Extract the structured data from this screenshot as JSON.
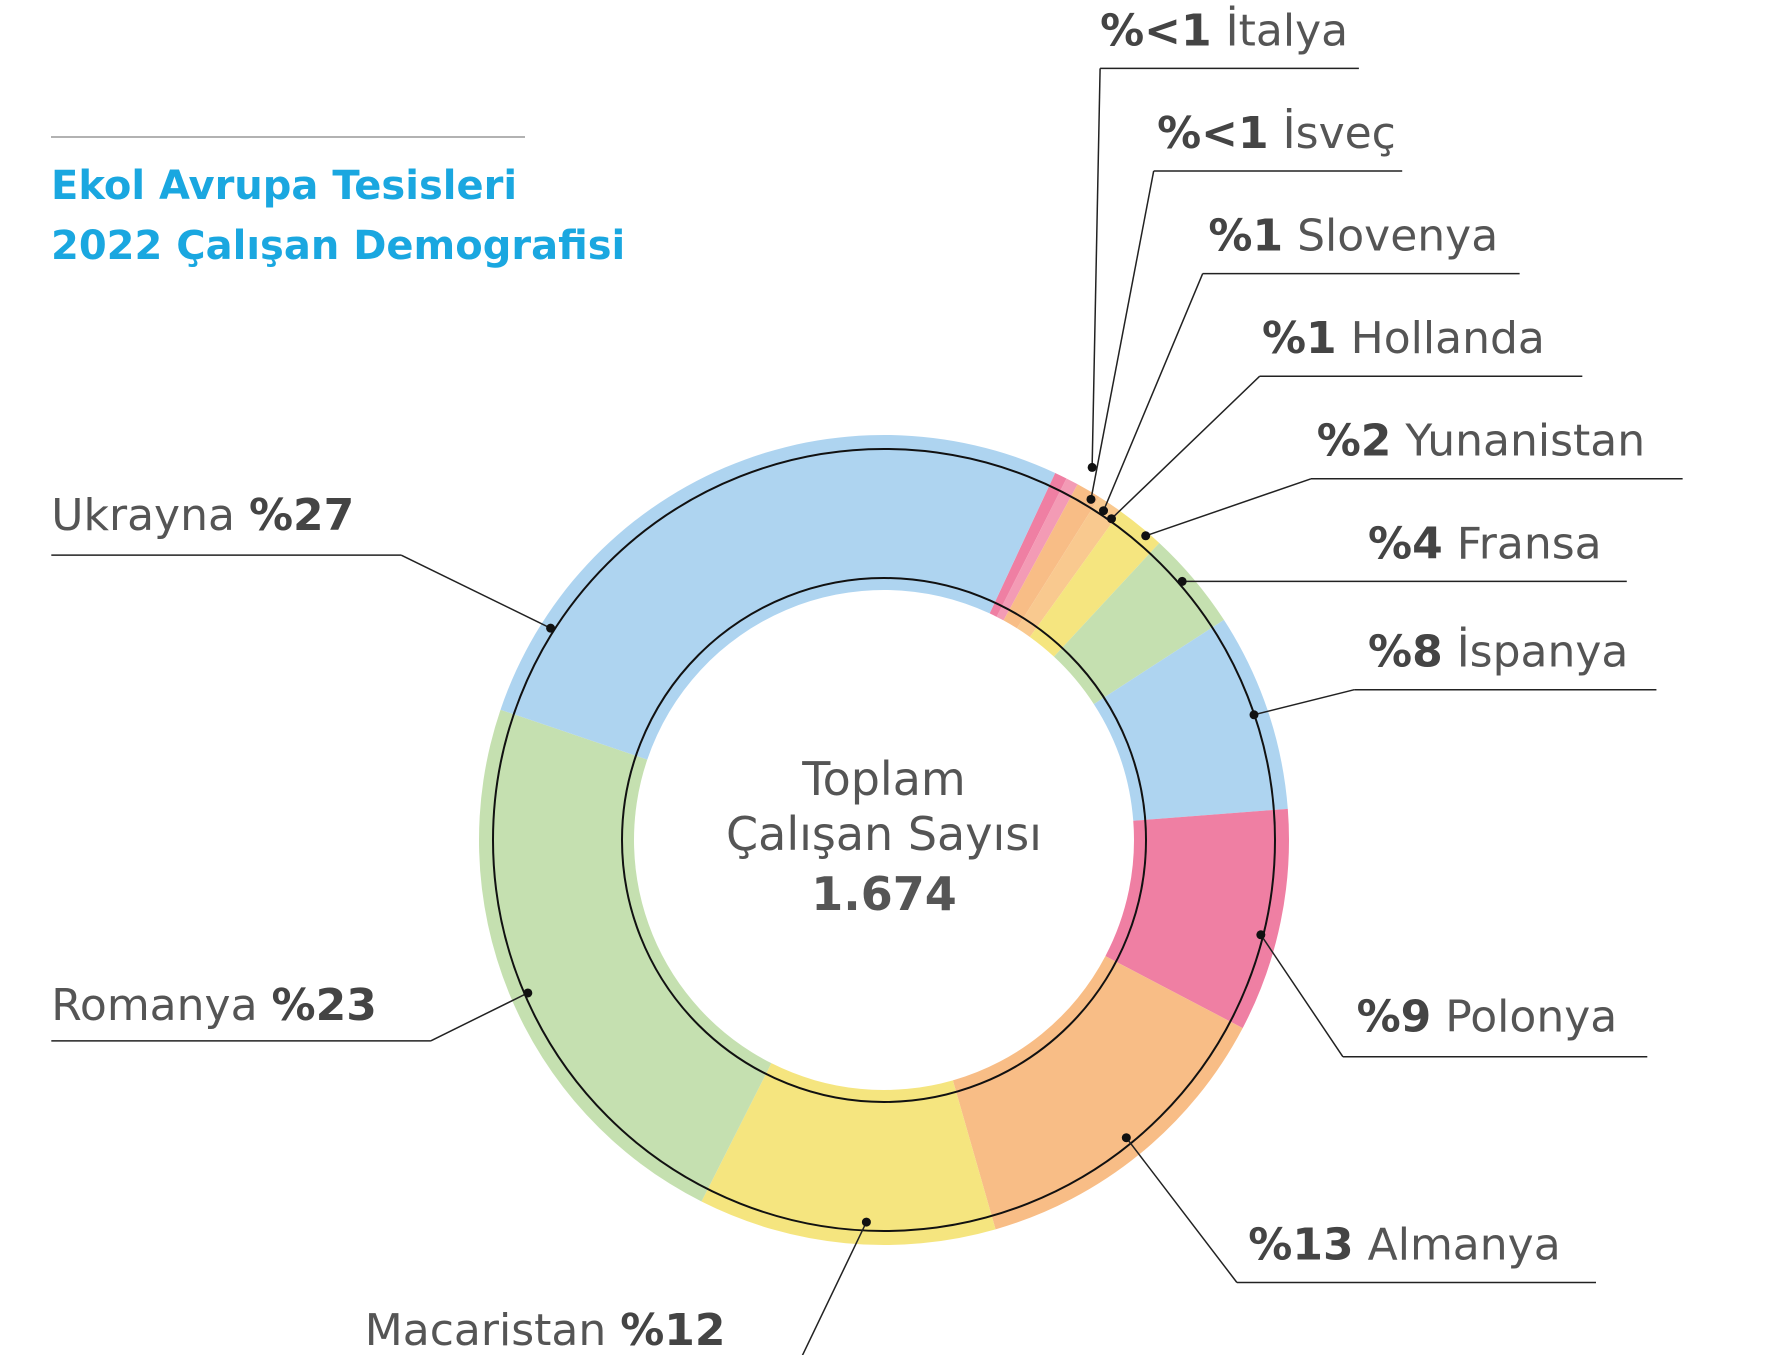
{
  "chart_data": {
    "type": "donut",
    "title": [
      "Ekol Avrupa Tesisleri",
      "2022 Çalışan Demografisi"
    ],
    "center_text": [
      "Toplam",
      "Çalışan Sayısı"
    ],
    "total_label": "1.674",
    "categories": [
      "İtalya",
      "İsveç",
      "Slovenya",
      "Hollanda",
      "Yunanistan",
      "Fransa",
      "İspanya",
      "Polonya",
      "Almanya",
      "Macaristan",
      "Romanya",
      "Ukrayna"
    ],
    "values": [
      0.5,
      0.5,
      1,
      1,
      2,
      4,
      8,
      9,
      13,
      12,
      23,
      27
    ],
    "value_labels": [
      "%<1",
      "%<1",
      "%1",
      "%1",
      "%2",
      "%4",
      "%8",
      "%9",
      "%13",
      "%12",
      "%23",
      "%27"
    ],
    "colors": [
      "#ef7fa3",
      "#f39bb5",
      "#f8bd86",
      "#f9c98f",
      "#f5e57f",
      "#c5e0b0",
      "#aed4f0",
      "#ef7fa3",
      "#f8bd86",
      "#f5e57f",
      "#c5e0b0",
      "#aed4f0"
    ]
  }
}
